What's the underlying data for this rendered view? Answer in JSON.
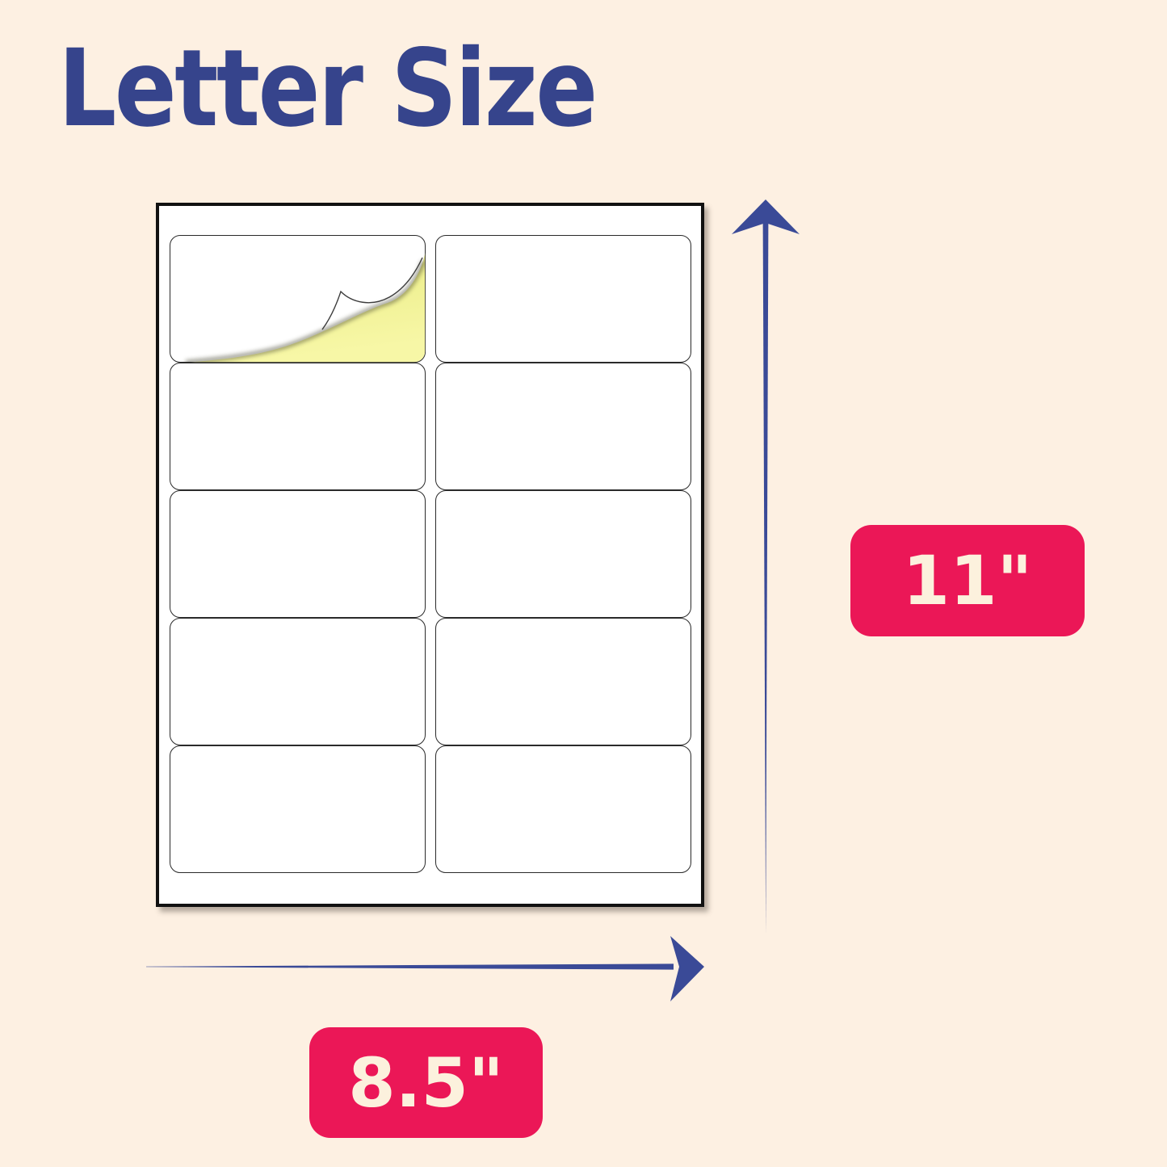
{
  "page": {
    "title": "Letter Size"
  },
  "sheet": {
    "rows": 5,
    "columns": 2,
    "label_count": 10,
    "peeled_label_index": 0
  },
  "dimensions": {
    "height": "11\"",
    "width": "8.5\""
  },
  "icons": {
    "height_arrow": "up-arrow-icon",
    "width_arrow": "right-arrow-icon"
  },
  "colors": {
    "background": "#fdf0e2",
    "title_navy": "#36448c",
    "arrow_blue": "#3a4a97",
    "badge_pink": "#eb1757",
    "badge_text": "#fcf1dd",
    "sheet_white": "#ffffff",
    "sheet_border": "#111111",
    "label_border": "#2a2a2a",
    "backing_yellow": "#f4f493"
  }
}
